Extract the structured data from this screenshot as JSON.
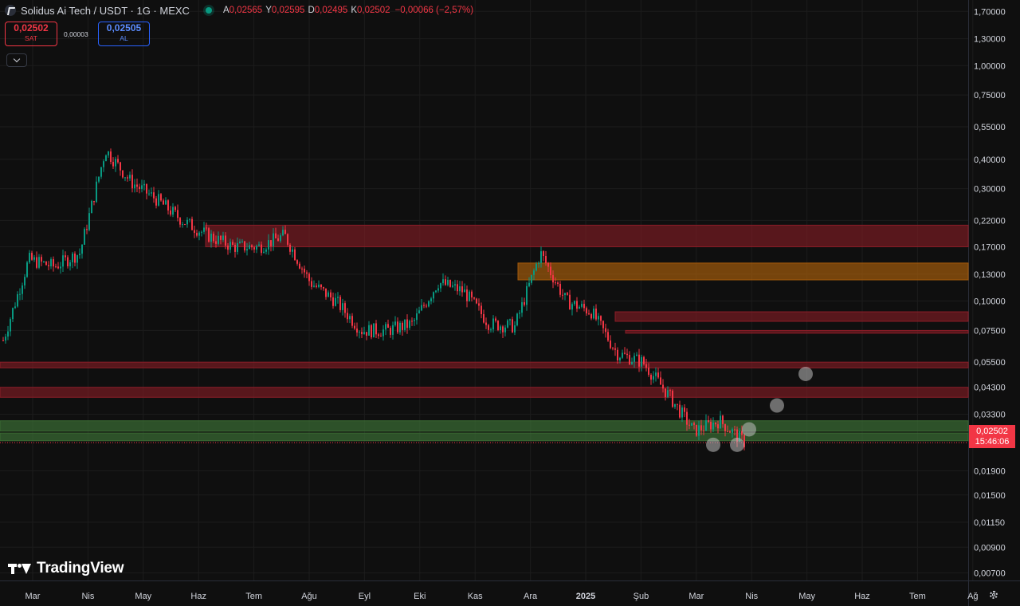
{
  "header": {
    "symbol": "Solidus Ai Tech / USDT · 1G · MEXC",
    "ohlc": [
      {
        "k": "A",
        "v": "0,02565"
      },
      {
        "k": "Y",
        "v": "0,02595"
      },
      {
        "k": "D",
        "v": "0,02495"
      },
      {
        "k": "K",
        "v": "0,02502"
      }
    ],
    "change": "−0,00066 (−2,57%)"
  },
  "trade": {
    "sell_price": "0,02502",
    "sell_label": "SAT",
    "spread": "0,00003",
    "buy_price": "0,02505",
    "buy_label": "AL"
  },
  "branding": {
    "name": "TradingView"
  },
  "price_tag": {
    "price": "0,02502",
    "countdown": "15:46:06"
  },
  "colors": {
    "up": "#089981",
    "down": "#f23645",
    "background": "#0f0f0f"
  },
  "chart_data": {
    "type": "candlestick",
    "y_scale": "log",
    "ylim": [
      0.0065,
      1.9
    ],
    "y_ticks": [
      {
        "v": 1.7,
        "label": "1,70000"
      },
      {
        "v": 1.3,
        "label": "1,30000"
      },
      {
        "v": 1.0,
        "label": "1,00000"
      },
      {
        "v": 0.75,
        "label": "0,75000"
      },
      {
        "v": 0.55,
        "label": "0,55000"
      },
      {
        "v": 0.4,
        "label": "0,40000"
      },
      {
        "v": 0.3,
        "label": "0,30000"
      },
      {
        "v": 0.22,
        "label": "0,22000"
      },
      {
        "v": 0.17,
        "label": "0,17000"
      },
      {
        "v": 0.13,
        "label": "0,13000"
      },
      {
        "v": 0.1,
        "label": "0,10000"
      },
      {
        "v": 0.075,
        "label": "0,07500"
      },
      {
        "v": 0.055,
        "label": "0,05500"
      },
      {
        "v": 0.043,
        "label": "0,04300"
      },
      {
        "v": 0.033,
        "label": "0,03300"
      },
      {
        "v": 0.019,
        "label": "0,01900"
      },
      {
        "v": 0.015,
        "label": "0,01500"
      },
      {
        "v": 0.0115,
        "label": "0,01150"
      },
      {
        "v": 0.009,
        "label": "0,00900"
      },
      {
        "v": 0.007,
        "label": "0,00700"
      }
    ],
    "x_ticks": [
      "Mar",
      "Nis",
      "May",
      "Haz",
      "Tem",
      "Ağu",
      "Eyl",
      "Eki",
      "Kas",
      "Ara",
      "2025",
      "Şub",
      "Mar",
      "Nis",
      "May",
      "Haz",
      "Tem",
      "Ağ"
    ],
    "price_path": [
      [
        0,
        0.068
      ],
      [
        1,
        0.15
      ],
      [
        2,
        0.14
      ],
      [
        3,
        0.16
      ],
      [
        4,
        0.44
      ],
      [
        5,
        0.32
      ],
      [
        6,
        0.27
      ],
      [
        7,
        0.22
      ],
      [
        8,
        0.19
      ],
      [
        9,
        0.17
      ],
      [
        10,
        0.17
      ],
      [
        11,
        0.19
      ],
      [
        12,
        0.12
      ],
      [
        13,
        0.1
      ],
      [
        14,
        0.075
      ],
      [
        15,
        0.075
      ],
      [
        16,
        0.08
      ],
      [
        17,
        0.12
      ],
      [
        18,
        0.11
      ],
      [
        19,
        0.08
      ],
      [
        20,
        0.078
      ],
      [
        21,
        0.16
      ],
      [
        22,
        0.1
      ],
      [
        23,
        0.09
      ],
      [
        24,
        0.06
      ],
      [
        25,
        0.055
      ],
      [
        26,
        0.04
      ],
      [
        27,
        0.028
      ],
      [
        28,
        0.031
      ],
      [
        29,
        0.025
      ]
    ],
    "zones": [
      {
        "type": "resistance",
        "low": 0.17,
        "high": 0.21
      },
      {
        "type": "supply",
        "low": 0.123,
        "high": 0.145
      },
      {
        "type": "resistance",
        "low": 0.082,
        "high": 0.09
      },
      {
        "type": "resistance",
        "low": 0.073,
        "high": 0.075
      },
      {
        "type": "resistance",
        "low": 0.052,
        "high": 0.055
      },
      {
        "type": "resistance",
        "low": 0.039,
        "high": 0.043
      },
      {
        "type": "support",
        "low": 0.028,
        "high": 0.031
      },
      {
        "type": "support",
        "low": 0.0255,
        "high": 0.0275
      }
    ],
    "markers": [
      0.0245,
      0.0285,
      0.0245,
      0.036,
      0.049
    ]
  }
}
